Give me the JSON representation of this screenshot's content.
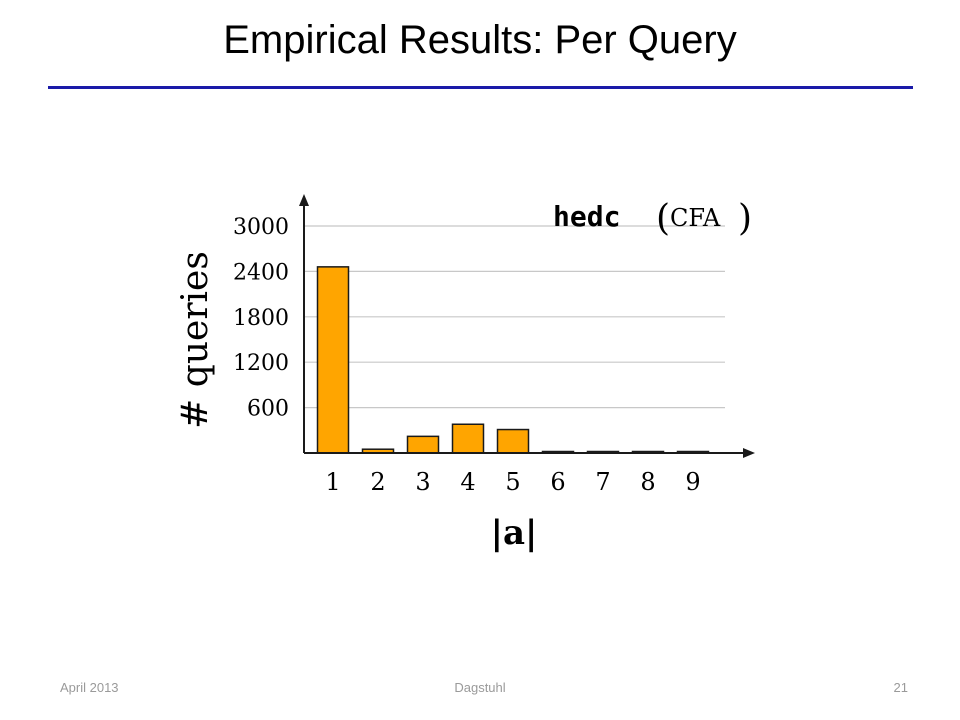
{
  "slide": {
    "title": "Empirical Results: Per Query",
    "footer_left": "April 2013",
    "footer_center": "Dagstuhl",
    "footer_right": "21"
  },
  "colors": {
    "bar": "#ffa500",
    "bar_stroke": "#1a1a1a",
    "title_rule": "#1a1aa8",
    "grid": "#c8c8c8"
  },
  "chart_data": {
    "type": "bar",
    "categories": [
      "1",
      "2",
      "3",
      "4",
      "5",
      "6",
      "7",
      "8",
      "9"
    ],
    "values": [
      2460,
      50,
      220,
      380,
      310,
      5,
      5,
      0,
      5
    ],
    "title_name": "hedc",
    "title_paren": "CFA",
    "xlabel": "|a|",
    "ylabel": "# queries",
    "yticks": [
      600,
      1200,
      1800,
      2400,
      3000
    ],
    "ylim": [
      0,
      3000
    ],
    "grid": true
  }
}
